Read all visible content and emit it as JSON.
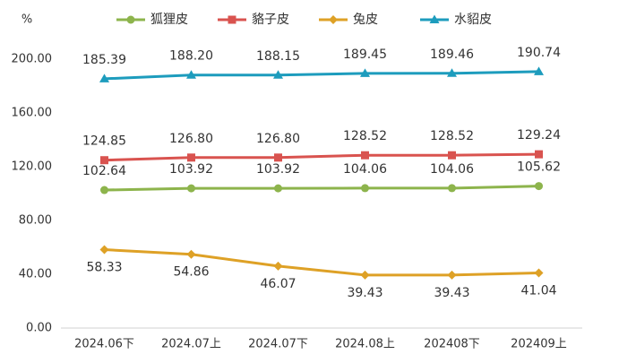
{
  "chart_data": {
    "type": "line",
    "y_unit": "%",
    "categories": [
      "2024.06下",
      "2024.07上",
      "2024.07下",
      "2024.08上",
      "202408下",
      "202409上"
    ],
    "series": [
      {
        "name": "狐狸皮",
        "color": "#8db44c",
        "marker": "circle",
        "values": [
          102.64,
          103.92,
          103.92,
          104.06,
          104.06,
          105.62
        ],
        "value_labels": [
          "102.64",
          "103.92",
          "103.92",
          "104.06",
          "104.06",
          "105.62"
        ]
      },
      {
        "name": "貉子皮",
        "color": "#d9534f",
        "marker": "square",
        "values": [
          124.85,
          126.8,
          126.8,
          128.52,
          128.52,
          129.24
        ],
        "value_labels": [
          "124.85",
          "126.80",
          "126.80",
          "128.52",
          "128.52",
          "129.24"
        ]
      },
      {
        "name": "兔皮",
        "color": "#dea126",
        "marker": "diamond",
        "values": [
          58.33,
          54.86,
          46.07,
          39.43,
          39.43,
          41.04
        ],
        "value_labels": [
          "58.33",
          "54.86",
          "46.07",
          "39.43",
          "39.43",
          "41.04"
        ]
      },
      {
        "name": "水貂皮",
        "color": "#1d9cbd",
        "marker": "triangle",
        "values": [
          185.39,
          188.2,
          188.15,
          189.45,
          189.46,
          190.74
        ],
        "value_labels": [
          "185.39",
          "188.20",
          "188.15",
          "189.45",
          "189.46",
          "190.74"
        ]
      }
    ],
    "ylim": [
      0,
      200
    ],
    "yticks": [
      {
        "value": 0,
        "label": "0.00"
      },
      {
        "value": 40,
        "label": "40.00"
      },
      {
        "value": 80,
        "label": "80.00"
      },
      {
        "value": 120,
        "label": "120.00"
      },
      {
        "value": 160,
        "label": "160.00"
      },
      {
        "value": 200,
        "label": "200.00"
      }
    ],
    "grid": false
  }
}
